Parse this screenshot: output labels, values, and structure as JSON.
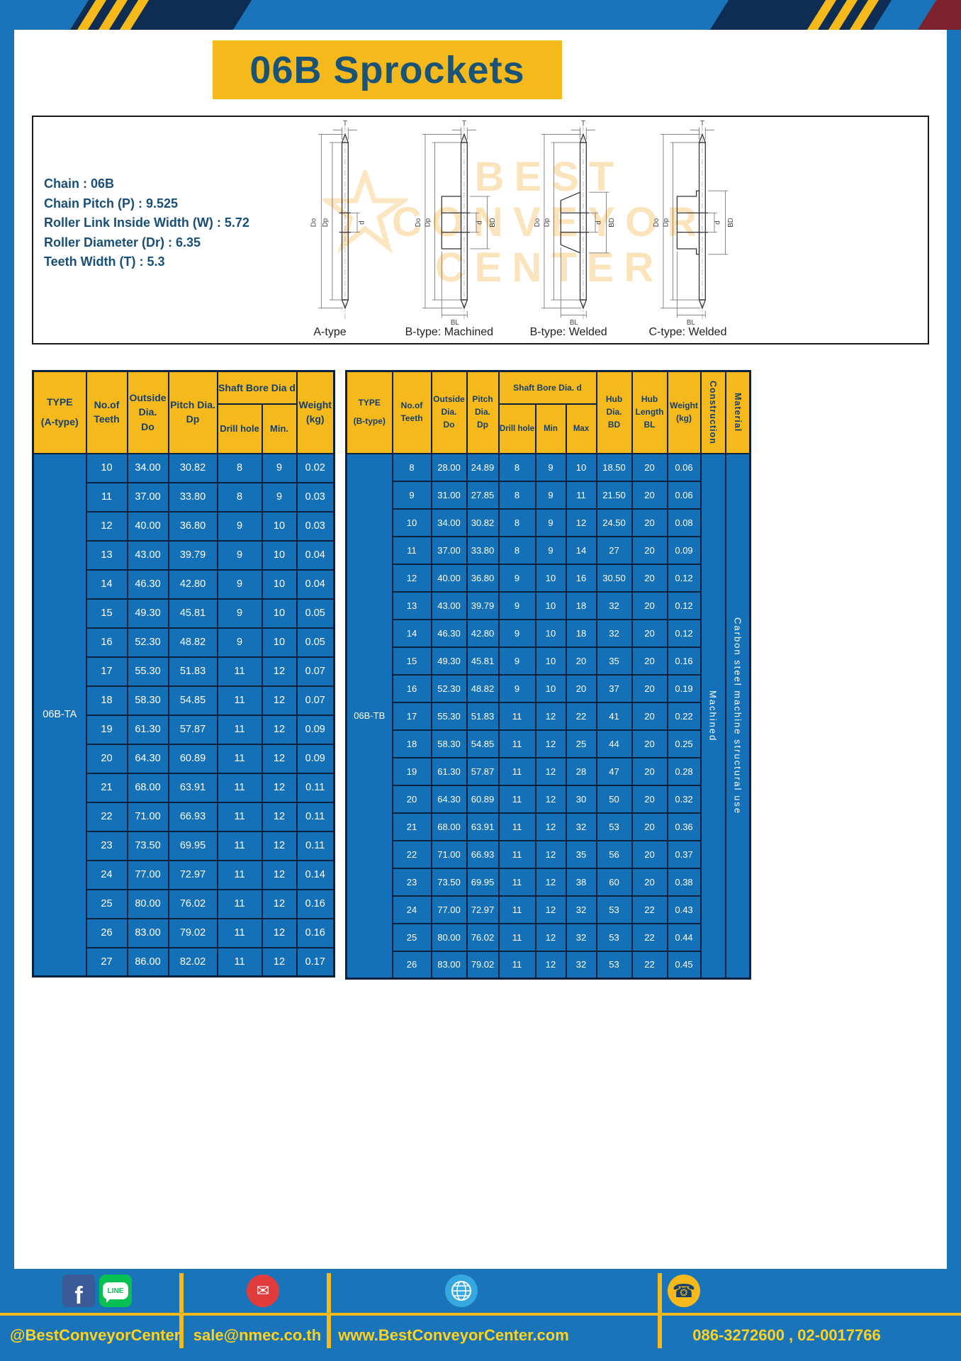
{
  "banner": {
    "title": "06B Sprockets"
  },
  "specs": [
    "Chain : 06B",
    "Chain Pitch (P) : 9.525",
    "Roller Link Inside Width (W) : 5.72",
    "Roller Diameter (Dr) : 6.35",
    "Teeth Width (T) : 5.3"
  ],
  "watermark": {
    "lines": [
      "BEST",
      "CONVEYOR",
      "CENTER"
    ]
  },
  "diagrams": [
    {
      "caption": "A-type",
      "labels": {
        "t": "T",
        "do": "Do",
        "dp": "Dp",
        "d": "d"
      }
    },
    {
      "caption": "B-type: Machined",
      "labels": {
        "t": "T",
        "do": "Do",
        "dp": "Dp",
        "d": "d",
        "bd": "BD",
        "bl": "BL"
      }
    },
    {
      "caption": "B-type: Welded",
      "labels": {
        "t": "T",
        "do": "Do",
        "dp": "Dp",
        "d": "d",
        "bd": "BD",
        "bl": "BL"
      }
    },
    {
      "caption": "C-type: Welded",
      "labels": {
        "t": "T",
        "do": "Do",
        "dp": "Dp",
        "d": "d",
        "bd": "BD",
        "bl": "BL"
      }
    }
  ],
  "table_a": {
    "headers": {
      "type": [
        "TYPE",
        "(A-type)"
      ],
      "teeth": [
        "No.of",
        "Teeth"
      ],
      "outside": [
        "Outside",
        "Dia.",
        "Do"
      ],
      "pitch": [
        "Pitch Dia.",
        "Dp"
      ],
      "bore_group": "Shaft Bore Dia d",
      "drill": "Drill hole",
      "min": "Min.",
      "weight": [
        "Weight",
        "(kg)"
      ]
    },
    "type_label": "06B-TA",
    "rows": [
      [
        "10",
        "34.00",
        "30.82",
        "8",
        "9",
        "0.02"
      ],
      [
        "11",
        "37.00",
        "33.80",
        "8",
        "9",
        "0.03"
      ],
      [
        "12",
        "40.00",
        "36.80",
        "9",
        "10",
        "0.03"
      ],
      [
        "13",
        "43.00",
        "39.79",
        "9",
        "10",
        "0.04"
      ],
      [
        "14",
        "46.30",
        "42.80",
        "9",
        "10",
        "0.04"
      ],
      [
        "15",
        "49.30",
        "45.81",
        "9",
        "10",
        "0.05"
      ],
      [
        "16",
        "52.30",
        "48.82",
        "9",
        "10",
        "0.05"
      ],
      [
        "17",
        "55.30",
        "51.83",
        "11",
        "12",
        "0.07"
      ],
      [
        "18",
        "58.30",
        "54.85",
        "11",
        "12",
        "0.07"
      ],
      [
        "19",
        "61.30",
        "57.87",
        "11",
        "12",
        "0.09"
      ],
      [
        "20",
        "64.30",
        "60.89",
        "11",
        "12",
        "0.09"
      ],
      [
        "21",
        "68.00",
        "63.91",
        "11",
        "12",
        "0.11"
      ],
      [
        "22",
        "71.00",
        "66.93",
        "11",
        "12",
        "0.11"
      ],
      [
        "23",
        "73.50",
        "69.95",
        "11",
        "12",
        "0.11"
      ],
      [
        "24",
        "77.00",
        "72.97",
        "11",
        "12",
        "0.14"
      ],
      [
        "25",
        "80.00",
        "76.02",
        "11",
        "12",
        "0.16"
      ],
      [
        "26",
        "83.00",
        "79.02",
        "11",
        "12",
        "0.16"
      ],
      [
        "27",
        "86.00",
        "82.02",
        "11",
        "12",
        "0.17"
      ]
    ]
  },
  "table_b": {
    "headers": {
      "type": [
        "TYPE",
        "(B-type)"
      ],
      "teeth": [
        "No.of",
        "Teeth"
      ],
      "outside": [
        "Outside",
        "Dia.",
        "Do"
      ],
      "pitch": [
        "Pitch",
        "Dia.",
        "Dp"
      ],
      "bore_group": "Shaft Bore Dia. d",
      "drill": "Drill hole",
      "min": "Min",
      "max": "Max",
      "hub_dia": [
        "Hub",
        "Dia.",
        "BD"
      ],
      "hub_len": [
        "Hub",
        "Length",
        "BL"
      ],
      "weight": [
        "Weight",
        "(kg)"
      ],
      "construction": "Construction",
      "material": "Material"
    },
    "type_label": "06B-TB",
    "construction_value": "Machined",
    "material_value": "Carbon steel machine structural use",
    "rows": [
      [
        "8",
        "28.00",
        "24.89",
        "8",
        "9",
        "10",
        "18.50",
        "20",
        "0.06"
      ],
      [
        "9",
        "31.00",
        "27.85",
        "8",
        "9",
        "11",
        "21.50",
        "20",
        "0.06"
      ],
      [
        "10",
        "34.00",
        "30.82",
        "8",
        "9",
        "12",
        "24.50",
        "20",
        "0.08"
      ],
      [
        "11",
        "37.00",
        "33.80",
        "8",
        "9",
        "14",
        "27",
        "20",
        "0.09"
      ],
      [
        "12",
        "40.00",
        "36.80",
        "9",
        "10",
        "16",
        "30.50",
        "20",
        "0.12"
      ],
      [
        "13",
        "43.00",
        "39.79",
        "9",
        "10",
        "18",
        "32",
        "20",
        "0.12"
      ],
      [
        "14",
        "46.30",
        "42.80",
        "9",
        "10",
        "18",
        "32",
        "20",
        "0.12"
      ],
      [
        "15",
        "49.30",
        "45.81",
        "9",
        "10",
        "20",
        "35",
        "20",
        "0.16"
      ],
      [
        "16",
        "52.30",
        "48.82",
        "9",
        "10",
        "20",
        "37",
        "20",
        "0.19"
      ],
      [
        "17",
        "55.30",
        "51.83",
        "11",
        "12",
        "22",
        "41",
        "20",
        "0.22"
      ],
      [
        "18",
        "58.30",
        "54.85",
        "11",
        "12",
        "25",
        "44",
        "20",
        "0.25"
      ],
      [
        "19",
        "61.30",
        "57.87",
        "11",
        "12",
        "28",
        "47",
        "20",
        "0.28"
      ],
      [
        "20",
        "64.30",
        "60.89",
        "11",
        "12",
        "30",
        "50",
        "20",
        "0.32"
      ],
      [
        "21",
        "68.00",
        "63.91",
        "11",
        "12",
        "32",
        "53",
        "20",
        "0.36"
      ],
      [
        "22",
        "71.00",
        "66.93",
        "11",
        "12",
        "35",
        "56",
        "20",
        "0.37"
      ],
      [
        "23",
        "73.50",
        "69.95",
        "11",
        "12",
        "38",
        "60",
        "20",
        "0.38"
      ],
      [
        "24",
        "77.00",
        "72.97",
        "11",
        "12",
        "32",
        "53",
        "22",
        "0.43"
      ],
      [
        "25",
        "80.00",
        "76.02",
        "11",
        "12",
        "32",
        "53",
        "22",
        "0.44"
      ],
      [
        "26",
        "83.00",
        "79.02",
        "11",
        "12",
        "32",
        "53",
        "22",
        "0.45"
      ]
    ]
  },
  "footer": {
    "facebook_letter": "f",
    "line_text": "LINE",
    "icons": [
      "facebook-icon",
      "line-icon",
      "email-icon",
      "globe-icon",
      "phone-icon"
    ],
    "phone_glyph": "☎",
    "mail_glyph": "✉",
    "sections": [
      {
        "label": "@BestConveyorCenter"
      },
      {
        "label": "sale@nmec.co.th"
      },
      {
        "label": "www.BestConveyorCenter.com"
      },
      {
        "label": "086-3272600 , 02-0017766"
      }
    ]
  },
  "colors": {
    "frame_blue": "#1A74BA",
    "cell_blue": "#1571B7",
    "accent_yellow": "#F6B91C",
    "navy": "#0F2C52",
    "header_text": "#14406B",
    "footer_text": "#FFD21E"
  }
}
